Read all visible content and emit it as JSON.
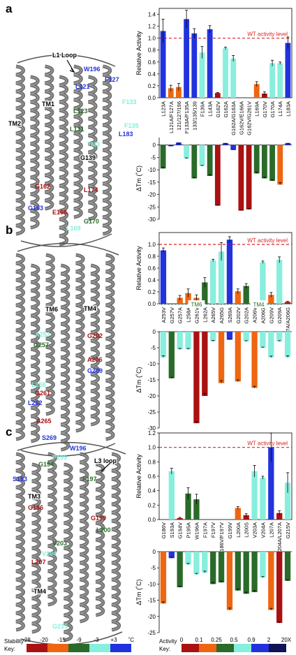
{
  "colors": {
    "blue": "#2233dd",
    "cyan": "#88eedd",
    "green": "#2a6b2a",
    "orange": "#ee6611",
    "red": "#aa1111",
    "wt_line": "#dd2222",
    "helix": "#555555"
  },
  "panels": [
    {
      "label": "a",
      "structure_labels": [
        "L1 Loop",
        "W196",
        "F127",
        "L121",
        "TM1",
        "TM2",
        "L123",
        "F133",
        "L131",
        "F135",
        "L183",
        "TM3",
        "G139",
        "G162",
        "L174",
        "G163",
        "E166",
        "G170",
        "L169"
      ],
      "chart_data": [
        {
          "type": "bar",
          "ylabel": "Relative Activity",
          "ylim": [
            0,
            1.5
          ],
          "yticks": [
            0,
            0.2,
            0.4,
            0.6,
            0.8,
            1.0,
            1.2,
            1.4
          ],
          "wt_label": "WT activity level",
          "wt_value": 1.0,
          "categories": [
            "L123A",
            "L121A/F127A",
            "121/127/196",
            "F133A/F135A",
            "133/135/139",
            "F139A",
            "L143A",
            "G162V",
            "G162A",
            "G162A/G163A",
            "G162V/E166A",
            "G162V/G261V",
            "L169A",
            "G170V",
            "G170A",
            "L174A",
            "L183A"
          ],
          "values": [
            1.12,
            0.16,
            0.18,
            1.32,
            1.08,
            0.76,
            1.15,
            0.08,
            0.83,
            0.66,
            0.0,
            0.0,
            0.23,
            0.07,
            0.58,
            0.58,
            0.92
          ],
          "errors": [
            0.2,
            0.05,
            0.06,
            0.15,
            0.08,
            0.1,
            0.06,
            0.01,
            0.02,
            0.05,
            0,
            0,
            0.04,
            0.03,
            0.05,
            0.02,
            0.1
          ]
        },
        {
          "type": "bar",
          "ylabel": "ΔTm (˚C)",
          "ylim": [
            -30,
            3
          ],
          "yticks": [
            0,
            -5,
            -10,
            -15,
            -20,
            -25,
            -30
          ],
          "categories": [
            "L123A",
            "L121A/F127A",
            "121/127/196",
            "F133A/F135A",
            "133/135/139",
            "F139A",
            "L143A",
            "G162V",
            "G162A",
            "G162A/G163A",
            "G162V/E166A",
            "G162V/G261V",
            "L169A",
            "G170V",
            "G170A",
            "L174A",
            "L183A"
          ],
          "values": [
            -9.5,
            -0.5,
            1.0,
            -5.5,
            -13.5,
            -8.5,
            -12.5,
            -24.5,
            0.8,
            -2.0,
            -26.5,
            -26.0,
            -11.5,
            -13.5,
            -14.5,
            -16.0,
            0.8
          ],
          "errors": [
            0.5,
            0.3,
            0.3,
            0.3,
            0.4,
            0.3,
            0.5,
            0.3,
            0.2,
            0.2,
            0.3,
            0.3,
            0.5,
            0.5,
            0.4,
            0.8,
            0.2
          ]
        }
      ]
    },
    {
      "label": "b",
      "structure_labels": [
        "TM6",
        "TM4",
        "A253",
        "G202",
        "G257",
        "L258",
        "A206",
        "G261",
        "G209",
        "L262",
        "A265",
        "S269"
      ],
      "tm_group_labels": [
        "TM6",
        "TM4"
      ],
      "chart_data": [
        {
          "type": "bar",
          "ylabel": "Relative Activity",
          "ylim": [
            0,
            1.2
          ],
          "yticks": [
            0,
            0.2,
            0.4,
            0.6,
            0.8,
            1.0
          ],
          "wt_label": "WT activity level",
          "wt_value": 1.0,
          "categories": [
            "A253V",
            "G257V",
            "G257A",
            "L258A",
            "G261V",
            "L262A",
            "A265V",
            "A265G",
            "S269A",
            "G202V",
            "G202A",
            "A206V",
            "A206G",
            "G209V",
            "G209A",
            "G257A/A206G"
          ],
          "values": [
            0.9,
            0.0,
            0.1,
            0.18,
            0.1,
            0.36,
            0.73,
            0.88,
            1.08,
            0.21,
            0.3,
            0.0,
            0.7,
            0.15,
            0.74,
            0.03
          ],
          "errors": [
            0.04,
            0,
            0.04,
            0.07,
            0.05,
            0.08,
            0.02,
            0.15,
            0.05,
            0.04,
            0.04,
            0,
            0.02,
            0.04,
            0.05,
            0.01
          ]
        },
        {
          "type": "bar",
          "ylabel": "ΔTm (˚C)",
          "ylim": [
            -30,
            0
          ],
          "yticks": [
            0,
            -5,
            -10,
            -15,
            -20,
            -25,
            -30
          ],
          "categories": [
            "A253V",
            "G257V",
            "G257A",
            "L258A",
            "G261V",
            "L262A",
            "A265V",
            "A265G",
            "S269A",
            "G202V",
            "G202A",
            "A206V",
            "A206G",
            "G209V",
            "G209A",
            "G257A/A206G"
          ],
          "values": [
            -8.0,
            -14.5,
            -5.5,
            -5.5,
            -28.5,
            -20.0,
            -3.0,
            -16.0,
            -2.5,
            -15.5,
            -3.0,
            -17.5,
            -5.0,
            -8.0,
            -3.0,
            -8.0
          ],
          "errors": [
            0.5,
            0.3,
            0.3,
            0.3,
            0.6,
            0.8,
            0.3,
            0.8,
            0.2,
            0.5,
            0.2,
            0.5,
            0.2,
            0.4,
            0.2,
            0.5
          ]
        }
      ]
    },
    {
      "label": "c",
      "structure_labels": [
        "W196",
        "L3 loop",
        "P195",
        "G194",
        "S193",
        "F197",
        "TM3",
        "G186",
        "G199",
        "L200",
        "V203",
        "V204",
        "L207",
        "TM4",
        "G215"
      ],
      "chart_data": [
        {
          "type": "bar",
          "ylabel": "Relative Activity",
          "ylim": [
            0,
            1.2
          ],
          "yticks": [
            0,
            0.2,
            0.4,
            0.6,
            0.8,
            1.0,
            1.2
          ],
          "wt_label": "WT activity level",
          "wt_value": 1.0,
          "categories": [
            "G186V",
            "S193A",
            "G194V",
            "P195A",
            "W196A",
            "F197A",
            "F197V",
            "G186V/F197V",
            "G199V",
            "L200A",
            "L200S",
            "V203A",
            "V204A",
            "L207A",
            "V204A/L207A",
            "G215V"
          ],
          "values": [
            0.0,
            0.67,
            0.02,
            0.36,
            0.28,
            0.0,
            0.0,
            0.0,
            0.0,
            0.16,
            0.06,
            0.67,
            0.58,
            1.0,
            0.09,
            0.51
          ],
          "errors": [
            0,
            0.04,
            0.01,
            0.08,
            0.07,
            0,
            0,
            0,
            0,
            0.02,
            0.02,
            0.08,
            0.02,
            0.2,
            0.03,
            0.14
          ]
        },
        {
          "type": "bar",
          "ylabel": "ΔTm (˚C)",
          "ylim": [
            -25,
            0
          ],
          "yticks": [
            0,
            -5,
            -10,
            -15,
            -20,
            -25
          ],
          "categories": [
            "G186V",
            "S193A",
            "G194V",
            "P195A",
            "W196A",
            "F197A",
            "F197V",
            "G186V/F197V",
            "G199V",
            "L200A",
            "L200S",
            "V203A",
            "V204A",
            "L207A",
            "V204A/L207A",
            "G215V"
          ],
          "values": [
            -16.0,
            -2.0,
            -11.0,
            -4.0,
            -7.0,
            -6.5,
            -10.0,
            -9.5,
            -18.0,
            -12.0,
            -13.0,
            -12.5,
            -8.0,
            -18.0,
            -22.0,
            -9.0
          ],
          "errors": [
            0.5,
            0.3,
            0.3,
            0.4,
            0.3,
            0.5,
            0.5,
            0.4,
            0.6,
            0.5,
            0.5,
            0.5,
            0.3,
            0.5,
            0.4,
            0.3
          ]
        }
      ]
    }
  ],
  "stability_key": {
    "label": "Stability Key:",
    "ticks": [
      "-28",
      "-20",
      "-15",
      "-9",
      "-3",
      "+3",
      "˚C"
    ]
  },
  "activity_key": {
    "label": "Activity Key:",
    "ticks": [
      "0",
      "0.1",
      "0.25",
      "0.5",
      "0.9",
      "2",
      "20X"
    ]
  }
}
